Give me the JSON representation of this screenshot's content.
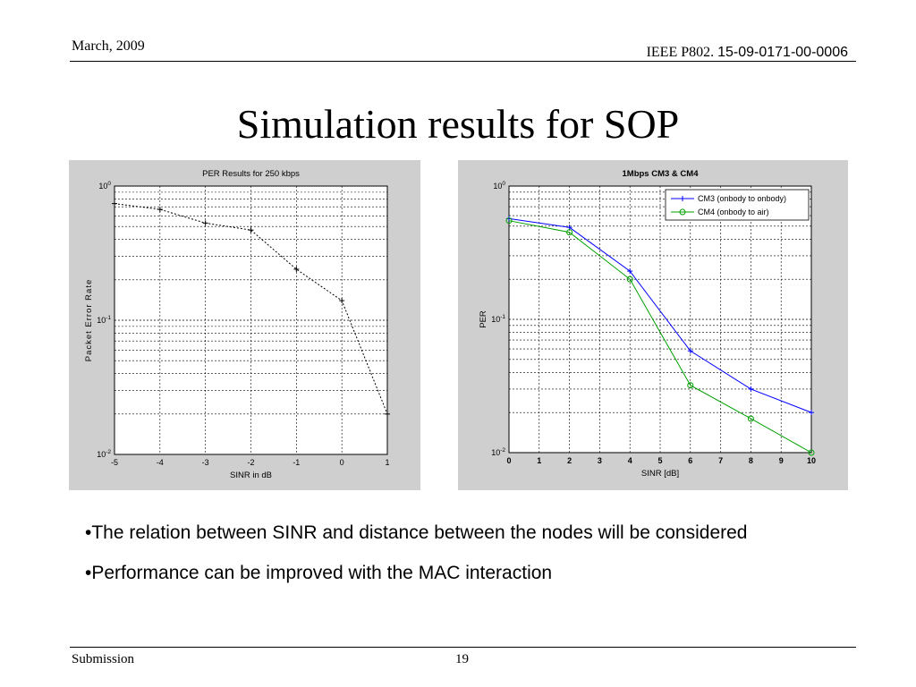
{
  "header": {
    "date": "March, 2009",
    "org": "IEEE P802.",
    "doc_number": "15-09-0171-00-0006"
  },
  "title": "Simulation results for SOP",
  "bullets": [
    "•The relation between SINR and distance between the nodes will be considered",
    "•Performance can be improved with the MAC interaction"
  ],
  "footer": {
    "left": "Submission",
    "page": "19"
  },
  "chart_data": [
    {
      "type": "line",
      "title": "PER Results for 250 kbps",
      "xlabel": "SINR in dB",
      "ylabel": "Packet Error Rate",
      "yscale": "log",
      "xlim": [
        -5,
        1
      ],
      "ylim": [
        0.01,
        1
      ],
      "grid": true,
      "x_ticks": [
        "-5",
        "-4",
        "-3",
        "-2",
        "-1",
        "0",
        "1"
      ],
      "y_ticks": [
        {
          "base": "10",
          "exp": "0"
        },
        {
          "base": "10",
          "exp": "-1"
        },
        {
          "base": "10",
          "exp": "-2"
        }
      ],
      "series": [
        {
          "color": "#000000",
          "marker": "+",
          "dashed": true,
          "x": [
            -5,
            -4,
            -3,
            -2,
            -1,
            0,
            1
          ],
          "y": [
            0.74,
            0.67,
            0.53,
            0.47,
            0.24,
            0.14,
            0.02
          ]
        }
      ]
    },
    {
      "type": "line",
      "title": "1Mbps CM3 & CM4",
      "xlabel": "SINR [dB]",
      "ylabel": "PER",
      "yscale": "log",
      "xlim": [
        0,
        10
      ],
      "ylim": [
        0.01,
        1
      ],
      "grid": true,
      "legend": "top-right",
      "x_ticks": [
        "0",
        "1",
        "2",
        "3",
        "4",
        "5",
        "6",
        "7",
        "8",
        "9",
        "10"
      ],
      "y_ticks": [
        {
          "base": "10",
          "exp": "0"
        },
        {
          "base": "10",
          "exp": "-1"
        },
        {
          "base": "10",
          "exp": "-2"
        }
      ],
      "series": [
        {
          "name": "CM3 (onbody to onbody)",
          "color": "#0000ff",
          "marker": "+",
          "x": [
            0,
            2,
            4,
            6,
            8,
            10
          ],
          "y": [
            0.57,
            0.49,
            0.23,
            0.058,
            0.03,
            0.02
          ]
        },
        {
          "name": "CM4 (onbody to air)",
          "color": "#00a000",
          "marker": "o",
          "x": [
            0,
            2,
            4,
            6,
            8,
            10
          ],
          "y": [
            0.55,
            0.45,
            0.2,
            0.032,
            0.018,
            0.01
          ]
        }
      ]
    }
  ]
}
